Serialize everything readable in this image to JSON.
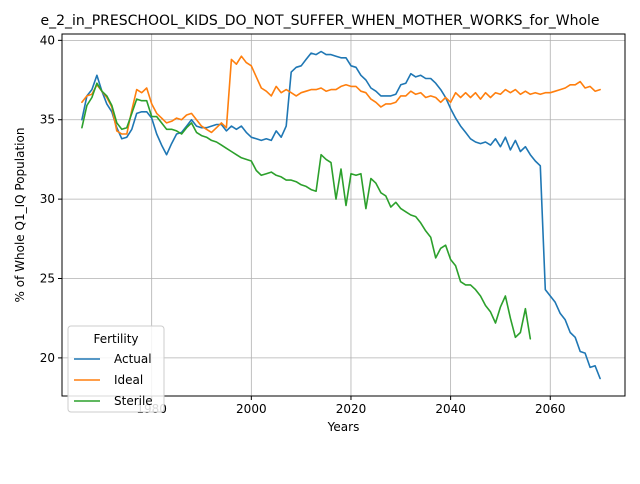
{
  "chart_data": {
    "type": "line",
    "title": "e_2_in_PRESCHOOL_KIDS_DO_NOT_SUFFER_WHEN_MOTHER_WORKS_for_Whole",
    "xlabel": "Years",
    "ylabel": "% of Whole Q1_IQ Population",
    "xlim": [
      1962,
      2075
    ],
    "ylim": [
      17.6,
      40.4
    ],
    "xticks": [
      1980,
      2000,
      2020,
      2040,
      2060
    ],
    "yticks": [
      20,
      25,
      30,
      35,
      40
    ],
    "grid": true,
    "legend": {
      "title": "Fertility",
      "placement": "lower-left"
    },
    "series": [
      {
        "name": "Actual",
        "color": "#1f77b4",
        "x": [
          1966,
          1967,
          1968,
          1969,
          1970,
          1971,
          1972,
          1973,
          1974,
          1975,
          1976,
          1977,
          1978,
          1979,
          1980,
          1981,
          1982,
          1983,
          1984,
          1985,
          1986,
          1987,
          1988,
          1989,
          1990,
          1991,
          1992,
          1993,
          1994,
          1995,
          1996,
          1997,
          1998,
          1999,
          2000,
          2001,
          2002,
          2003,
          2004,
          2005,
          2006,
          2007,
          2008,
          2009,
          2010,
          2011,
          2012,
          2013,
          2014,
          2015,
          2016,
          2017,
          2018,
          2019,
          2020,
          2021,
          2022,
          2023,
          2024,
          2025,
          2026,
          2027,
          2028,
          2029,
          2030,
          2031,
          2032,
          2033,
          2034,
          2035,
          2036,
          2037,
          2038,
          2039,
          2040,
          2041,
          2042,
          2043,
          2044,
          2045,
          2046,
          2047,
          2048,
          2049,
          2050,
          2051,
          2052,
          2053,
          2054,
          2055,
          2056,
          2057,
          2058,
          2059,
          2060,
          2061,
          2062,
          2063,
          2064,
          2065,
          2066,
          2067,
          2068,
          2069,
          2070
        ],
        "y": [
          35.0,
          36.5,
          36.9,
          37.8,
          36.8,
          36.0,
          35.5,
          34.5,
          33.8,
          33.9,
          34.4,
          35.4,
          35.5,
          35.5,
          35.1,
          34.1,
          33.4,
          32.8,
          33.5,
          34.1,
          34.2,
          34.6,
          35.0,
          34.6,
          34.5,
          34.5,
          34.6,
          34.7,
          34.7,
          34.3,
          34.6,
          34.4,
          34.6,
          34.2,
          33.9,
          33.8,
          33.7,
          33.8,
          33.7,
          34.3,
          33.9,
          34.6,
          38.0,
          38.3,
          38.4,
          38.8,
          39.2,
          39.1,
          39.3,
          39.1,
          39.1,
          39.0,
          38.9,
          38.9,
          38.4,
          38.3,
          37.8,
          37.5,
          37.0,
          36.8,
          36.5,
          36.5,
          36.5,
          36.6,
          37.2,
          37.3,
          37.9,
          37.7,
          37.8,
          37.6,
          37.6,
          37.3,
          36.9,
          36.4,
          35.7,
          35.1,
          34.6,
          34.2,
          33.8,
          33.6,
          33.5,
          33.6,
          33.4,
          33.8,
          33.3,
          33.9,
          33.1,
          33.7,
          33.0,
          33.3,
          32.8,
          32.4,
          32.1,
          24.3,
          23.9,
          23.5,
          22.8,
          22.4,
          21.6,
          21.3,
          20.4,
          20.3,
          19.4,
          19.5,
          18.7
        ]
      },
      {
        "name": "Ideal",
        "color": "#ff7f0e",
        "x": [
          1966,
          1967,
          1968,
          1969,
          1970,
          1971,
          1972,
          1973,
          1974,
          1975,
          1976,
          1977,
          1978,
          1979,
          1980,
          1981,
          1982,
          1983,
          1984,
          1985,
          1986,
          1987,
          1988,
          1989,
          1990,
          1991,
          1992,
          1993,
          1994,
          1995,
          1996,
          1997,
          1998,
          1999,
          2000,
          2001,
          2002,
          2003,
          2004,
          2005,
          2006,
          2007,
          2008,
          2009,
          2010,
          2011,
          2012,
          2013,
          2014,
          2015,
          2016,
          2017,
          2018,
          2019,
          2020,
          2021,
          2022,
          2023,
          2024,
          2025,
          2026,
          2027,
          2028,
          2029,
          2030,
          2031,
          2032,
          2033,
          2034,
          2035,
          2036,
          2037,
          2038,
          2039,
          2040,
          2041,
          2042,
          2043,
          2044,
          2045,
          2046,
          2047,
          2048,
          2049,
          2050,
          2051,
          2052,
          2053,
          2054,
          2055,
          2056,
          2057,
          2058,
          2059,
          2060,
          2061,
          2062,
          2063,
          2064,
          2065,
          2066,
          2067,
          2068,
          2069,
          2070
        ],
        "y": [
          36.1,
          36.5,
          36.6,
          37.2,
          36.8,
          36.4,
          35.8,
          34.3,
          34.1,
          34.1,
          35.6,
          36.9,
          36.7,
          37.0,
          36.0,
          35.4,
          35.1,
          34.8,
          34.9,
          35.1,
          35.0,
          35.3,
          35.4,
          35.0,
          34.6,
          34.4,
          34.2,
          34.5,
          34.8,
          34.5,
          38.8,
          38.5,
          39.0,
          38.6,
          38.4,
          37.7,
          37.0,
          36.8,
          36.5,
          37.1,
          36.7,
          36.9,
          36.7,
          36.5,
          36.7,
          36.8,
          36.9,
          36.9,
          37.0,
          36.8,
          36.9,
          36.9,
          37.1,
          37.2,
          37.1,
          37.1,
          36.8,
          36.7,
          36.3,
          36.1,
          35.8,
          36.0,
          36.0,
          36.1,
          36.5,
          36.5,
          36.8,
          36.6,
          36.7,
          36.4,
          36.5,
          36.4,
          36.1,
          36.4,
          36.1,
          36.7,
          36.4,
          36.7,
          36.4,
          36.7,
          36.3,
          36.7,
          36.4,
          36.7,
          36.6,
          36.9,
          36.7,
          36.9,
          36.6,
          36.8,
          36.6,
          36.7,
          36.6,
          36.7,
          36.7,
          36.8,
          36.9,
          37.0,
          37.2,
          37.2,
          37.4,
          37.0,
          37.1,
          36.8,
          36.9
        ]
      },
      {
        "name": "Sterile",
        "color": "#2ca02c",
        "x": [
          1966,
          1967,
          1968,
          1969,
          1970,
          1971,
          1972,
          1973,
          1974,
          1975,
          1976,
          1977,
          1978,
          1979,
          1980,
          1981,
          1982,
          1983,
          1984,
          1985,
          1986,
          1987,
          1988,
          1989,
          1990,
          1991,
          1992,
          1993,
          1994,
          1995,
          1996,
          1997,
          1998,
          1999,
          2000,
          2001,
          2002,
          2003,
          2004,
          2005,
          2006,
          2007,
          2008,
          2009,
          2010,
          2011,
          2012,
          2013,
          2014,
          2015,
          2016,
          2017,
          2018,
          2019,
          2020,
          2021,
          2022,
          2023,
          2024,
          2025,
          2026,
          2027,
          2028,
          2029,
          2030,
          2031,
          2032,
          2033,
          2034,
          2035,
          2036,
          2037,
          2038,
          2039,
          2040,
          2041,
          2042,
          2043,
          2044,
          2045,
          2046,
          2047,
          2048,
          2049,
          2050,
          2051,
          2052,
          2053,
          2054,
          2055,
          2056
        ],
        "y": [
          34.5,
          35.9,
          36.4,
          37.3,
          36.8,
          36.5,
          35.9,
          34.8,
          34.4,
          34.5,
          35.4,
          36.3,
          36.2,
          36.2,
          35.2,
          35.2,
          34.8,
          34.4,
          34.4,
          34.3,
          34.1,
          34.5,
          34.8,
          34.2,
          34.0,
          33.9,
          33.7,
          33.6,
          33.4,
          33.2,
          33.0,
          32.8,
          32.6,
          32.5,
          32.4,
          31.8,
          31.5,
          31.6,
          31.7,
          31.5,
          31.4,
          31.2,
          31.2,
          31.1,
          30.9,
          30.8,
          30.6,
          30.5,
          32.8,
          32.5,
          32.3,
          30.0,
          31.9,
          29.6,
          31.6,
          31.5,
          31.6,
          29.4,
          31.3,
          31.0,
          30.4,
          30.2,
          29.5,
          29.8,
          29.4,
          29.2,
          29.0,
          28.9,
          28.5,
          28.0,
          27.6,
          26.3,
          26.9,
          27.1,
          26.2,
          25.8,
          24.8,
          24.6,
          24.6,
          24.3,
          23.9,
          23.3,
          22.9,
          22.2,
          23.2,
          23.9,
          22.5,
          21.3,
          21.6,
          23.1,
          21.2
        ]
      }
    ]
  }
}
